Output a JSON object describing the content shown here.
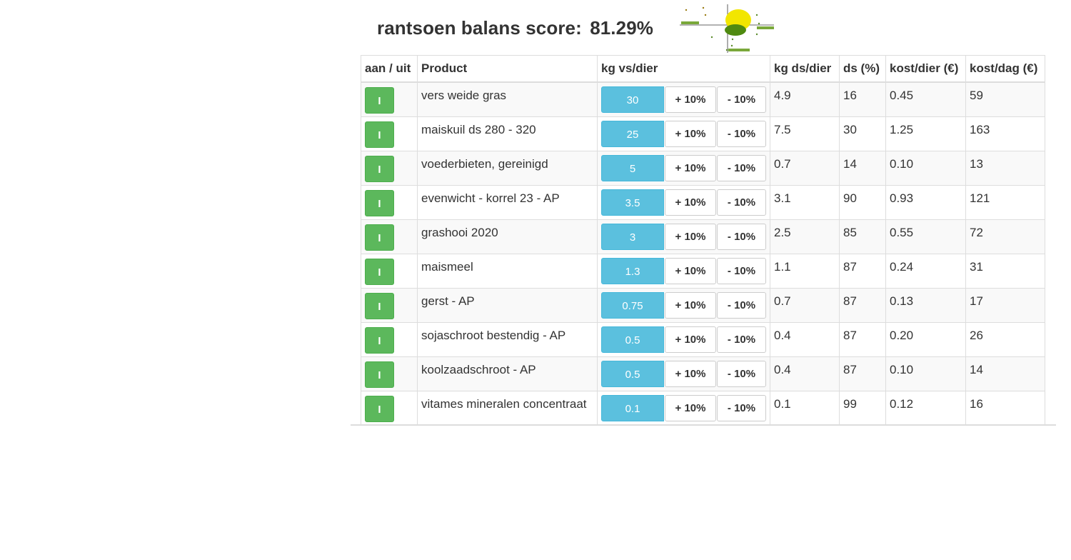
{
  "header": {
    "label": "rantsoen balans score:",
    "score": "81.29%"
  },
  "table": {
    "headers": [
      "aan / uit",
      "Product",
      "kg vs/dier",
      "kg ds/dier",
      "ds (%)",
      "kost/dier (€)",
      "kost/dag (€)"
    ],
    "plus_label": "+ 10%",
    "minus_label": "- 10%",
    "rows": [
      {
        "toggle": "I",
        "product": "vers weide gras",
        "kg_vs": "30",
        "kg_ds": "4.9",
        "ds_pct": "16",
        "kost_dier": "0.45",
        "kost_dag": "59"
      },
      {
        "toggle": "I",
        "product": "maiskuil ds 280 - 320",
        "kg_vs": "25",
        "kg_ds": "7.5",
        "ds_pct": "30",
        "kost_dier": "1.25",
        "kost_dag": "163"
      },
      {
        "toggle": "I",
        "product": "voederbieten, gereinigd",
        "kg_vs": "5",
        "kg_ds": "0.7",
        "ds_pct": "14",
        "kost_dier": "0.10",
        "kost_dag": "13"
      },
      {
        "toggle": "I",
        "product": "evenwicht - korrel 23 - AP",
        "kg_vs": "3.5",
        "kg_ds": "3.1",
        "ds_pct": "90",
        "kost_dier": "0.93",
        "kost_dag": "121"
      },
      {
        "toggle": "I",
        "product": "grashooi 2020",
        "kg_vs": "3",
        "kg_ds": "2.5",
        "ds_pct": "85",
        "kost_dier": "0.55",
        "kost_dag": "72"
      },
      {
        "toggle": "I",
        "product": "maismeel",
        "kg_vs": "1.3",
        "kg_ds": "1.1",
        "ds_pct": "87",
        "kost_dier": "0.24",
        "kost_dag": "31"
      },
      {
        "toggle": "I",
        "product": "gerst - AP",
        "kg_vs": "0.75",
        "kg_ds": "0.7",
        "ds_pct": "87",
        "kost_dier": "0.13",
        "kost_dag": "17"
      },
      {
        "toggle": "I",
        "product": "sojaschroot bestendig - AP",
        "kg_vs": "0.5",
        "kg_ds": "0.4",
        "ds_pct": "87",
        "kost_dier": "0.20",
        "kost_dag": "26"
      },
      {
        "toggle": "I",
        "product": "koolzaadschroot - AP",
        "kg_vs": "0.5",
        "kg_ds": "0.4",
        "ds_pct": "87",
        "kost_dier": "0.10",
        "kost_dag": "14"
      },
      {
        "toggle": "I",
        "product": "vitames mineralen concentraat",
        "kg_vs": "0.1",
        "kg_ds": "0.1",
        "ds_pct": "99",
        "kost_dier": "0.12",
        "kost_dag": "16"
      }
    ]
  },
  "colors": {
    "toggle_green": "#5cb85c",
    "input_blue": "#5bc0de",
    "chart_yellow": "#f2e600",
    "chart_green": "#4f8a10",
    "chart_label_bg": "#7aa83a"
  },
  "mini_chart": {
    "icon": "ration-balance-diagram"
  }
}
